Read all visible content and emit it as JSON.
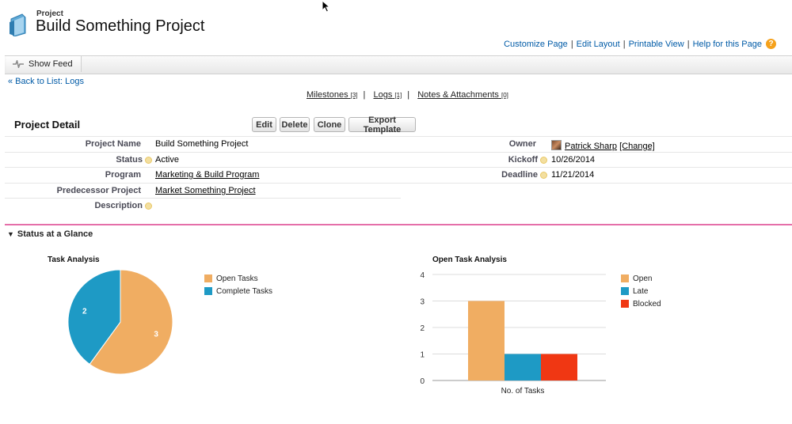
{
  "header": {
    "kicker": "Project",
    "title": "Build Something Project",
    "links": [
      "Customize Page",
      "Edit Layout",
      "Printable View",
      "Help for this Page"
    ],
    "separator": "|"
  },
  "feed": {
    "show_feed_label": "Show Feed"
  },
  "back_link": "« Back to List: Logs",
  "related": [
    {
      "label": "Milestones",
      "count": "[3]"
    },
    {
      "label": "Logs",
      "count": "[1]"
    },
    {
      "label": "Notes & Attachments",
      "count": "[0]"
    }
  ],
  "detail": {
    "section_title": "Project Detail",
    "buttons": [
      "Edit",
      "Delete",
      "Clone",
      "Export Template"
    ],
    "fields": {
      "project_name": {
        "label": "Project Name",
        "value": "Build Something Project"
      },
      "status": {
        "label": "Status",
        "value": "Active"
      },
      "program": {
        "label": "Program",
        "value": "Marketing & Build Program"
      },
      "predecessor": {
        "label": "Predecessor Project",
        "value": "Market Something Project"
      },
      "description": {
        "label": "Description",
        "value": ""
      },
      "owner": {
        "label": "Owner",
        "value": "Patrick Sharp",
        "change": "[Change]"
      },
      "kickoff": {
        "label": "Kickoff",
        "value": "10/26/2014"
      },
      "deadline": {
        "label": "Deadline",
        "value": "11/21/2014"
      }
    }
  },
  "glance": {
    "title": "Status at a Glance"
  },
  "chart_data": [
    {
      "type": "pie",
      "title": "Task Analysis",
      "categories": [
        "Open Tasks",
        "Complete Tasks"
      ],
      "values": [
        3,
        2
      ],
      "colors": [
        "#f0ad62",
        "#1e9ac5"
      ]
    },
    {
      "type": "bar",
      "title": "Open Task Analysis",
      "categories": [
        "No. of Tasks"
      ],
      "series": [
        {
          "name": "Open",
          "values": [
            3
          ],
          "color": "#f0ad62"
        },
        {
          "name": "Late",
          "values": [
            1
          ],
          "color": "#1e9ac5"
        },
        {
          "name": "Blocked",
          "values": [
            1
          ],
          "color": "#f03713"
        }
      ],
      "ylim": [
        0,
        4
      ],
      "yticks": [
        "0",
        "1",
        "2",
        "3",
        "4"
      ],
      "grid": true,
      "legend": "right"
    }
  ]
}
